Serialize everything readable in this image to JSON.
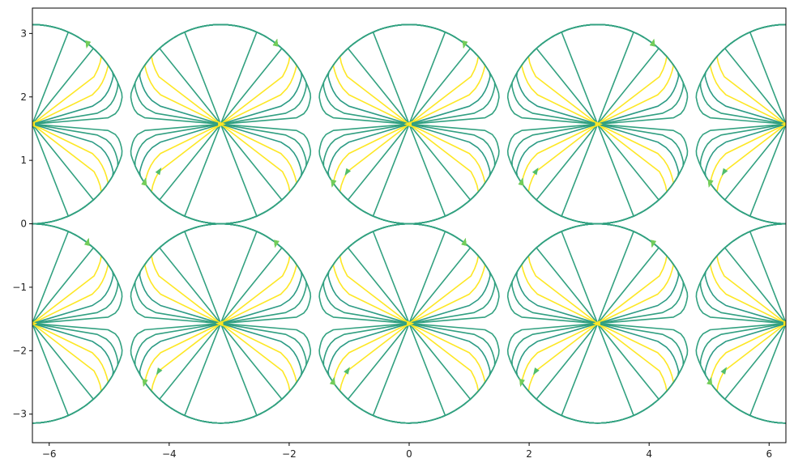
{
  "chart_data": {
    "type": "streamplot",
    "title": "",
    "xlabel": "",
    "ylabel": "",
    "xlim": [
      -6.28,
      6.28
    ],
    "ylim": [
      -3.45,
      3.4
    ],
    "x_ticks": [
      -6,
      -4,
      -2,
      0,
      2,
      4,
      6
    ],
    "x_tick_labels": [
      "−6",
      "−4",
      "−2",
      "0",
      "2",
      "4",
      "6"
    ],
    "y_ticks": [
      -3,
      -2,
      -1,
      0,
      1,
      2,
      3
    ],
    "y_tick_labels": [
      "−3",
      "−2",
      "−1",
      "0",
      "1",
      "2",
      "3"
    ],
    "field": {
      "u": "-sin(y)*cos(x)",
      "v": "cos(y)*sin(x)",
      "color_by": "speed"
    },
    "grid": false,
    "colormap": [
      "#440154",
      "#3b528b",
      "#21918c",
      "#5ec962",
      "#fde725"
    ],
    "cell_centers": [
      [
        -6.283,
        1.571
      ],
      [
        -3.1416,
        1.571
      ],
      [
        0,
        1.571
      ],
      [
        3.1416,
        1.571
      ],
      [
        6.283,
        1.571
      ],
      [
        -6.283,
        -1.571
      ],
      [
        -3.1416,
        -1.571
      ],
      [
        0,
        -1.571
      ],
      [
        3.1416,
        -1.571
      ],
      [
        6.283,
        -1.571
      ]
    ],
    "contour_levels": [
      0.08,
      0.22,
      0.38,
      0.52,
      0.65,
      0.76,
      0.85,
      0.92,
      0.97
    ]
  }
}
